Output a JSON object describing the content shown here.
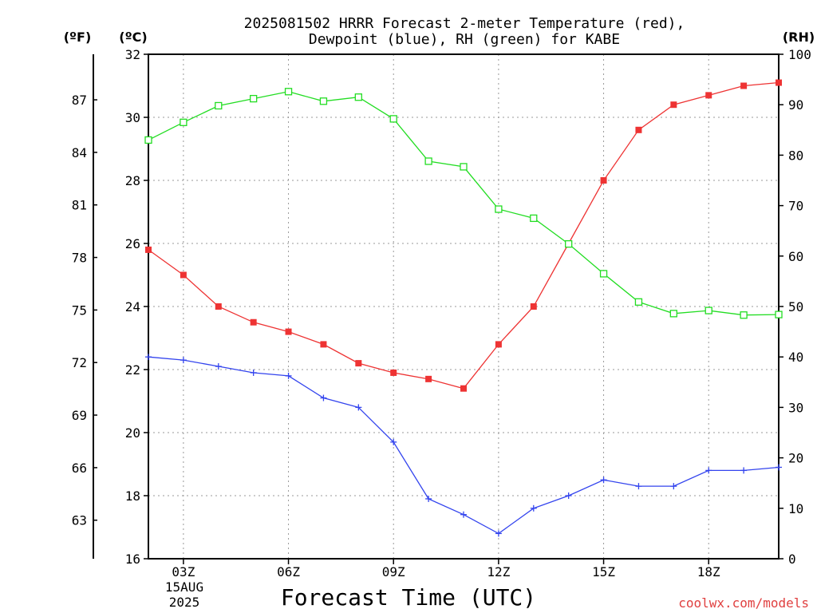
{
  "chart_data": {
    "type": "line",
    "title_line1": "2025081502 HRRR Forecast 2-meter Temperature (red),",
    "title_line2": "Dewpoint (blue), RH (green) for KABE",
    "xlabel": "Forecast Time (UTC)",
    "date_label_line1": "15AUG",
    "date_label_line2": "2025",
    "unit_f": "(ºF)",
    "unit_c": "(ºC)",
    "unit_rh": "(RH)",
    "watermark": "coolwx.com/models",
    "x_hours": [
      2,
      3,
      4,
      5,
      6,
      7,
      8,
      9,
      10,
      11,
      12,
      13,
      14,
      15,
      16,
      17,
      18,
      19,
      20
    ],
    "x_ticks": [
      {
        "hour": 3,
        "label": "03Z"
      },
      {
        "hour": 6,
        "label": "06Z"
      },
      {
        "hour": 9,
        "label": "09Z"
      },
      {
        "hour": 12,
        "label": "12Z"
      },
      {
        "hour": 15,
        "label": "15Z"
      },
      {
        "hour": 18,
        "label": "18Z"
      }
    ],
    "xlim": [
      2,
      20
    ],
    "ylim_c": [
      16,
      32
    ],
    "yticks_c": [
      "16",
      "18",
      "20",
      "22",
      "24",
      "26",
      "28",
      "30",
      "32"
    ],
    "yticks_f": [
      "63",
      "66",
      "69",
      "72",
      "75",
      "78",
      "81",
      "84",
      "87"
    ],
    "ylim_rh": [
      0,
      100
    ],
    "yticks_rh": [
      "0",
      "10",
      "20",
      "30",
      "40",
      "50",
      "60",
      "70",
      "80",
      "90",
      "100"
    ],
    "grid": true,
    "series": [
      {
        "name": "Temperature",
        "color": "#ee3333",
        "marker": "filled-square",
        "axis": "c",
        "values": [
          25.8,
          25.0,
          24.0,
          23.5,
          23.2,
          22.8,
          22.2,
          21.9,
          21.7,
          21.4,
          22.8,
          24.0,
          26.0,
          28.0,
          29.6,
          30.4,
          30.7,
          31.0,
          31.1
        ]
      },
      {
        "name": "Dewpoint",
        "color": "#3344ee",
        "marker": "plus",
        "axis": "c",
        "values": [
          22.4,
          22.3,
          22.1,
          21.9,
          21.8,
          21.1,
          20.8,
          19.7,
          17.9,
          17.4,
          16.8,
          17.6,
          18.0,
          18.5,
          18.3,
          18.3,
          18.8,
          18.8,
          18.9
        ]
      },
      {
        "name": "RH",
        "color": "#22dd22",
        "marker": "open-square",
        "axis": "rh",
        "values": [
          83,
          86.5,
          89.8,
          91.2,
          92.6,
          90.7,
          91.5,
          87.2,
          78.8,
          77.7,
          69.3,
          67.5,
          62.4,
          56.5,
          50.9,
          48.6,
          49.2,
          48.3,
          48.4
        ]
      }
    ]
  }
}
